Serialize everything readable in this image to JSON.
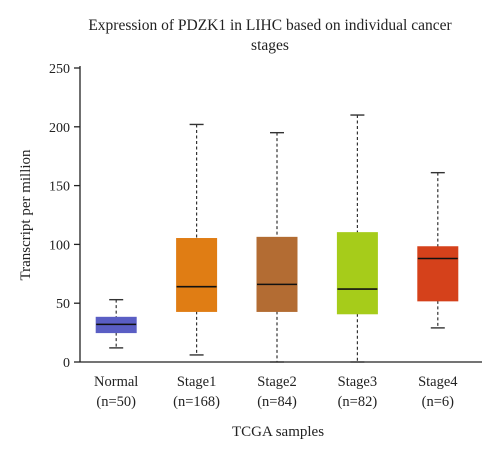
{
  "chart_data": {
    "type": "box",
    "title_lines": [
      "Expression of PDZK1 in LIHC based on individual cancer",
      "stages"
    ],
    "xlabel": "TCGA samples",
    "ylabel": "Transcript per million",
    "ylim": [
      0,
      250
    ],
    "yticks": [
      "0",
      "50",
      "100",
      "150",
      "200",
      "250"
    ],
    "grid": false,
    "legend": "none",
    "categories": [
      {
        "label": "Normal",
        "sublabel": "(n=50)",
        "color": "#5a5ec4",
        "min": 12,
        "q1": 25,
        "median": 32,
        "q3": 38,
        "max": 53
      },
      {
        "label": "Stage1",
        "sublabel": "(n=168)",
        "color": "#e07d14",
        "min": 6,
        "q1": 43,
        "median": 64,
        "q3": 105,
        "max": 202
      },
      {
        "label": "Stage2",
        "sublabel": "(n=84)",
        "color": "#b36c33",
        "min": 0,
        "q1": 43,
        "median": 66,
        "q3": 106,
        "max": 195
      },
      {
        "label": "Stage3",
        "sublabel": "(n=82)",
        "color": "#a6cc1a",
        "min": 0,
        "q1": 41,
        "median": 62,
        "q3": 110,
        "max": 210
      },
      {
        "label": "Stage4",
        "sublabel": "(n=6)",
        "color": "#d5411b",
        "min": 29,
        "q1": 52,
        "median": 88,
        "q3": 98,
        "max": 161
      }
    ]
  }
}
